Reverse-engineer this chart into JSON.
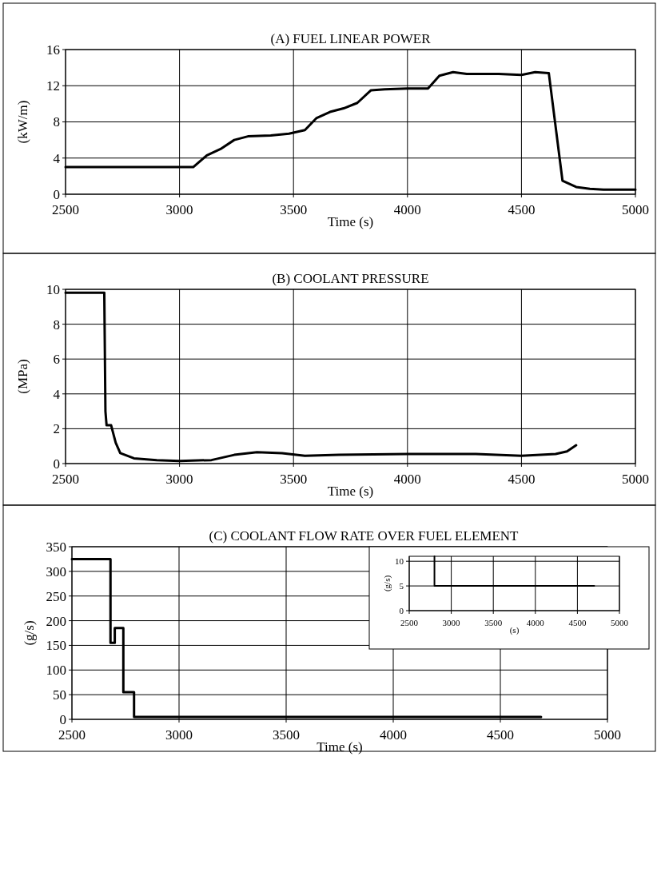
{
  "chart_data": [
    {
      "type": "line",
      "title": "(A) FUEL LINEAR POWER",
      "xlabel": "Time (s)",
      "ylabel": "(kW/m)",
      "color": "#000000",
      "grid": true,
      "x": [
        2500,
        3060,
        3120,
        3180,
        3240,
        3300,
        3400,
        3480,
        3550,
        3600,
        3660,
        3720,
        3780,
        3840,
        3900,
        4000,
        4090,
        4140,
        4200,
        4260,
        4400,
        4500,
        4560,
        4620,
        4680,
        4740,
        4800,
        4860,
        5000
      ],
      "values": [
        3,
        3,
        4.3,
        5,
        6,
        6.4,
        6.5,
        6.7,
        7.1,
        8.4,
        9.1,
        9.5,
        10.1,
        11.5,
        11.6,
        11.7,
        11.7,
        13.1,
        13.5,
        13.3,
        13.3,
        13.2,
        13.5,
        13.4,
        1.5,
        0.8,
        0.6,
        0.5,
        0.5
      ],
      "xlim": [
        2500,
        5000
      ],
      "xticks": [
        2500,
        3000,
        3500,
        4000,
        4500,
        5000
      ],
      "ylim": [
        0,
        16
      ],
      "yticks": [
        0,
        4,
        8,
        12,
        16
      ]
    },
    {
      "type": "line",
      "title": "(B) COOLANT PRESSURE",
      "xlabel": "Time (s)",
      "ylabel": "(MPa)",
      "color": "#000000",
      "grid": true,
      "x": [
        2500,
        2670,
        2675,
        2680,
        2700,
        2720,
        2740,
        2800,
        2900,
        3000,
        3140,
        3240,
        3340,
        3450,
        3550,
        3700,
        4000,
        4300,
        4500,
        4650,
        4700,
        4740
      ],
      "values": [
        9.8,
        9.8,
        3,
        2.2,
        2.2,
        1.2,
        0.6,
        0.3,
        0.2,
        0.15,
        0.2,
        0.5,
        0.65,
        0.6,
        0.45,
        0.5,
        0.55,
        0.55,
        0.45,
        0.55,
        0.7,
        1.05
      ],
      "xlim": [
        2500,
        5000
      ],
      "xticks": [
        2500,
        3000,
        3500,
        4000,
        4500,
        5000
      ],
      "ylim": [
        0,
        10
      ],
      "yticks": [
        0,
        2,
        4,
        6,
        8,
        10
      ]
    },
    {
      "type": "line",
      "title": "(C) COOLANT FLOW RATE OVER FUEL ELEMENT",
      "xlabel": "Time (s)",
      "ylabel": "(g/s)",
      "color": "#000000",
      "grid": true,
      "x": [
        2500,
        2680,
        2680,
        2700,
        2700,
        2740,
        2740,
        2790,
        2790,
        4690
      ],
      "values": [
        325,
        325,
        155,
        155,
        185,
        185,
        55,
        55,
        5,
        5
      ],
      "xlim": [
        2500,
        5000
      ],
      "xticks": [
        2500,
        3000,
        3500,
        4000,
        4500,
        5000
      ],
      "ylim": [
        0,
        350
      ],
      "yticks": [
        0,
        50,
        100,
        150,
        200,
        250,
        300,
        350
      ]
    },
    {
      "type": "line",
      "xlabel": "(s)",
      "ylabel": "(g/s)",
      "color": "#000000",
      "grid": true,
      "x": [
        2800,
        2800,
        4700
      ],
      "values": [
        11,
        5,
        5
      ],
      "xlim": [
        2500,
        5000
      ],
      "xticks": [
        2500,
        3000,
        3500,
        4000,
        4500,
        5000
      ],
      "ylim": [
        0,
        11
      ],
      "yticks": [
        0,
        5,
        10
      ]
    }
  ]
}
